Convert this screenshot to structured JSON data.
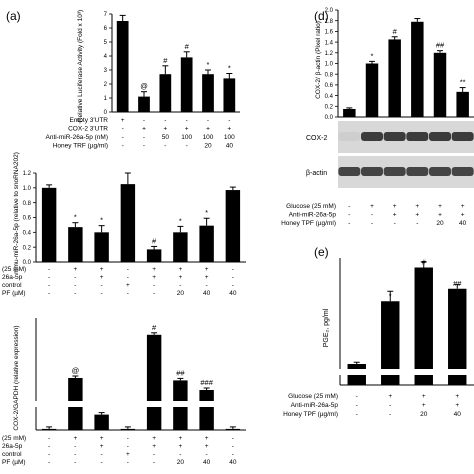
{
  "chart_data": [
    {
      "panel": "(a)",
      "type": "bar",
      "ylabel": "Relative Luciferase Activity (Fold x 10³)",
      "yticks": [
        "0",
        "1",
        "2",
        "3",
        "4",
        "5",
        "6",
        "7"
      ],
      "ylim": [
        0,
        7
      ],
      "values": [
        6.5,
        1.1,
        2.7,
        3.9,
        2.7,
        2.4
      ],
      "errors": [
        0.4,
        0.35,
        0.6,
        0.4,
        0.3,
        0.35
      ],
      "markers": [
        "",
        "@",
        "#",
        "#",
        "*",
        "*"
      ],
      "rows": [
        {
          "label": "Empty 3'UTR",
          "cells": [
            "+",
            "-",
            "-",
            "-",
            "-",
            "-"
          ]
        },
        {
          "label": "COX-2 3'UTR",
          "cells": [
            "-",
            "+",
            "+",
            "+",
            "+",
            "+"
          ]
        },
        {
          "label": "Anti-miR-26a-5p (nM)",
          "cells": [
            "-",
            "-",
            "50",
            "100",
            "100",
            "100"
          ]
        },
        {
          "label": "Honey TRF (µg/ml)",
          "cells": [
            "-",
            "-",
            "-",
            "-",
            "20",
            "40"
          ]
        }
      ]
    },
    {
      "panel": "",
      "type": "bar",
      "ylabel": "mmu-miR-26a-5p (relative to snoRNA202)",
      "yticks": [
        "0.0",
        "0.2",
        "0.4",
        "0.6",
        "0.8",
        "1.0",
        "1.2"
      ],
      "ylim": [
        0,
        1.2
      ],
      "values": [
        1.0,
        0.47,
        0.4,
        1.05,
        0.17,
        0.4,
        0.49,
        0.97
      ],
      "errors": [
        0.04,
        0.06,
        0.09,
        0.15,
        0.04,
        0.08,
        0.1,
        0.04
      ],
      "markers": [
        "",
        "*",
        "*",
        "",
        "#",
        "*",
        "*",
        ""
      ],
      "rows": [
        {
          "label": "(25 mM)",
          "cells": [
            "-",
            "+",
            "+",
            "-",
            "+",
            "+",
            "+",
            "-"
          ]
        },
        {
          "label": "26a-5p",
          "cells": [
            "-",
            "-",
            "+",
            "-",
            "+",
            "+",
            "+",
            "-"
          ]
        },
        {
          "label": "control",
          "cells": [
            "-",
            "-",
            "-",
            "+",
            "-",
            "-",
            "-",
            "-"
          ]
        },
        {
          "label": "PF (µM)",
          "cells": [
            "-",
            "-",
            "-",
            "-",
            "-",
            "20",
            "40",
            "40"
          ]
        }
      ]
    },
    {
      "panel": "",
      "type": "bar",
      "ylabel": "COX-2/GAPDH (relative expression)",
      "values": [
        1,
        100,
        14,
        1,
        190,
        95,
        75,
        1
      ],
      "markers": [
        "",
        "@",
        "*",
        "",
        "#",
        "##",
        "###",
        ""
      ],
      "rows": [
        {
          "label": "(25 mM)",
          "cells": [
            "-",
            "+",
            "+",
            "-",
            "+",
            "+",
            "+",
            "-"
          ]
        },
        {
          "label": "26a-5p",
          "cells": [
            "-",
            "-",
            "+",
            "-",
            "+",
            "+",
            "+",
            "-"
          ]
        },
        {
          "label": "control",
          "cells": [
            "-",
            "-",
            "-",
            "+",
            "-",
            "-",
            "-",
            "-"
          ]
        },
        {
          "label": "PF (µM)",
          "cells": [
            "-",
            "-",
            "-",
            "-",
            "-",
            "20",
            "40",
            "40"
          ]
        }
      ]
    },
    {
      "panel": "(d)",
      "type": "bar",
      "ylabel": "COX-2/ β-actin (Pixel ratio)",
      "yticks": [
        "0.0",
        "0.2",
        "0.4",
        "0.6",
        "0.8",
        "1.0",
        "1.2",
        "1.4",
        "1.6",
        "1.8",
        "2.0"
      ],
      "ylim": [
        0,
        2.0
      ],
      "values": [
        0.15,
        1.0,
        1.45,
        1.78,
        1.2,
        0.47
      ],
      "errors": [
        0.02,
        0.04,
        0.05,
        0.06,
        0.04,
        0.08
      ],
      "markers": [
        "",
        "*",
        "#",
        "",
        "##",
        "**"
      ],
      "blot_labels": [
        "COX-2",
        "β-actin"
      ],
      "rows": [
        {
          "label": "Glucose (25 mM)",
          "cells": [
            "-",
            "+",
            "+",
            "+",
            "+",
            "+"
          ]
        },
        {
          "label": "Anti-miR-26a-5p",
          "cells": [
            "-",
            "-",
            "+",
            "+",
            "+",
            "+"
          ]
        },
        {
          "label": "Honey TPF (µg/ml)",
          "cells": [
            "-",
            "-",
            "-",
            "-",
            "20",
            "40"
          ]
        }
      ]
    },
    {
      "panel": "(e)",
      "type": "bar",
      "ylabel": "PGE₂, pg/ml",
      "values": [
        60,
        650,
        920,
        750
      ],
      "markers": [
        "",
        "*",
        "#",
        "##"
      ],
      "rows": [
        {
          "label": "Glucose (25 mM)",
          "cells": [
            "-",
            "+",
            "+",
            "+"
          ]
        },
        {
          "label": "Anti-miR-26a-5p",
          "cells": [
            "-",
            "-",
            "+",
            "+"
          ]
        },
        {
          "label": "Honey TPF (µg/ml)",
          "cells": [
            "-",
            "-",
            "20",
            "40"
          ]
        }
      ]
    }
  ]
}
